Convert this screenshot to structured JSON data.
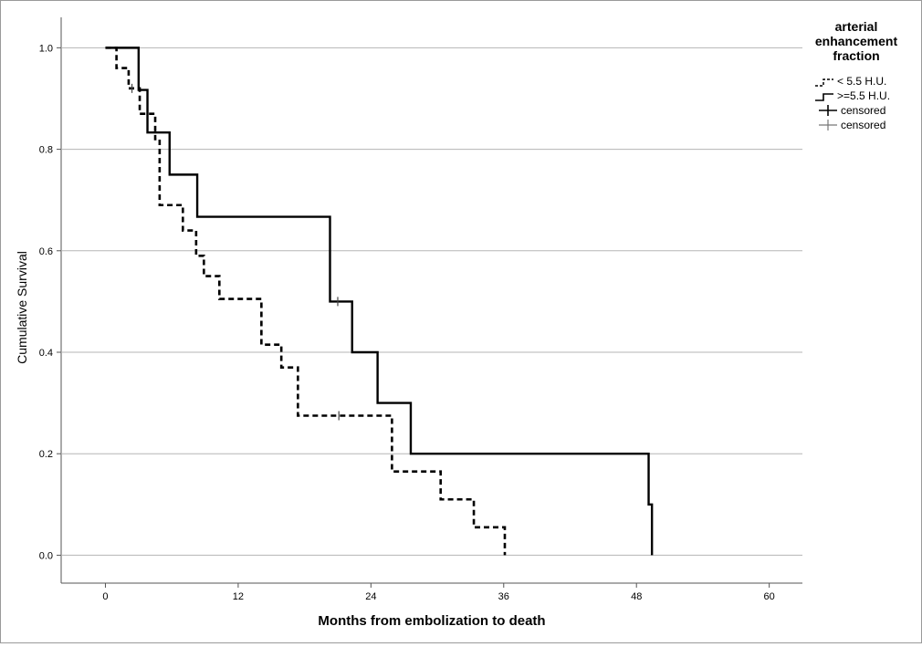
{
  "chart_data": {
    "type": "line",
    "step": true,
    "xlabel": "Months from embolization to death",
    "ylabel": "Cumulative Survival",
    "xlim": [
      -4,
      63
    ],
    "ylim": [
      -0.055,
      1.06
    ],
    "xticks": [
      0,
      12,
      24,
      36,
      48,
      60
    ],
    "xtick_labels": [
      "0",
      "12",
      "24",
      "36",
      "48",
      "60"
    ],
    "yticks": [
      0.0,
      0.2,
      0.4,
      0.6,
      0.8,
      1.0
    ],
    "ytick_labels": [
      "0.0",
      "0.2",
      "0.4",
      "0.6",
      "0.8",
      "1.0"
    ],
    "grid": "horizontal",
    "legend": {
      "title": "arterial enhancement fraction",
      "title_lines": [
        "arterial",
        "enhancement",
        "fraction"
      ],
      "placement": "top-right outside",
      "entries": [
        "< 5.5 H.U.",
        ">=5.5 H.U.",
        "censored",
        "censored"
      ]
    },
    "series": [
      {
        "name": "< 5.5 H.U.",
        "style": "dashed",
        "color": "#000000",
        "x": [
          0,
          1.0,
          2.1,
          3.1,
          4.5,
          4.9,
          7.0,
          8.2,
          8.9,
          10.3,
          14.1,
          15.9,
          17.4,
          25.9,
          30.3,
          33.3,
          36.1
        ],
        "y": [
          1.0,
          0.96,
          0.92,
          0.87,
          0.82,
          0.69,
          0.64,
          0.59,
          0.55,
          0.505,
          0.415,
          0.37,
          0.275,
          0.165,
          0.11,
          0.055,
          0.0
        ],
        "censored": [
          {
            "x": 2.4,
            "y": 0.92
          },
          {
            "x": 21.1,
            "y": 0.275
          }
        ]
      },
      {
        "name": ">=5.5 H.U.",
        "style": "solid",
        "color": "#000000",
        "x": [
          0,
          3.0,
          3.8,
          5.8,
          8.3,
          20.3,
          22.3,
          24.6,
          27.6,
          49.1,
          49.4
        ],
        "y": [
          1.0,
          0.917,
          0.833,
          0.75,
          0.667,
          0.5,
          0.4,
          0.3,
          0.2,
          0.1,
          0.0
        ],
        "censored": [
          {
            "x": 21.0,
            "y": 0.5
          }
        ]
      }
    ]
  }
}
